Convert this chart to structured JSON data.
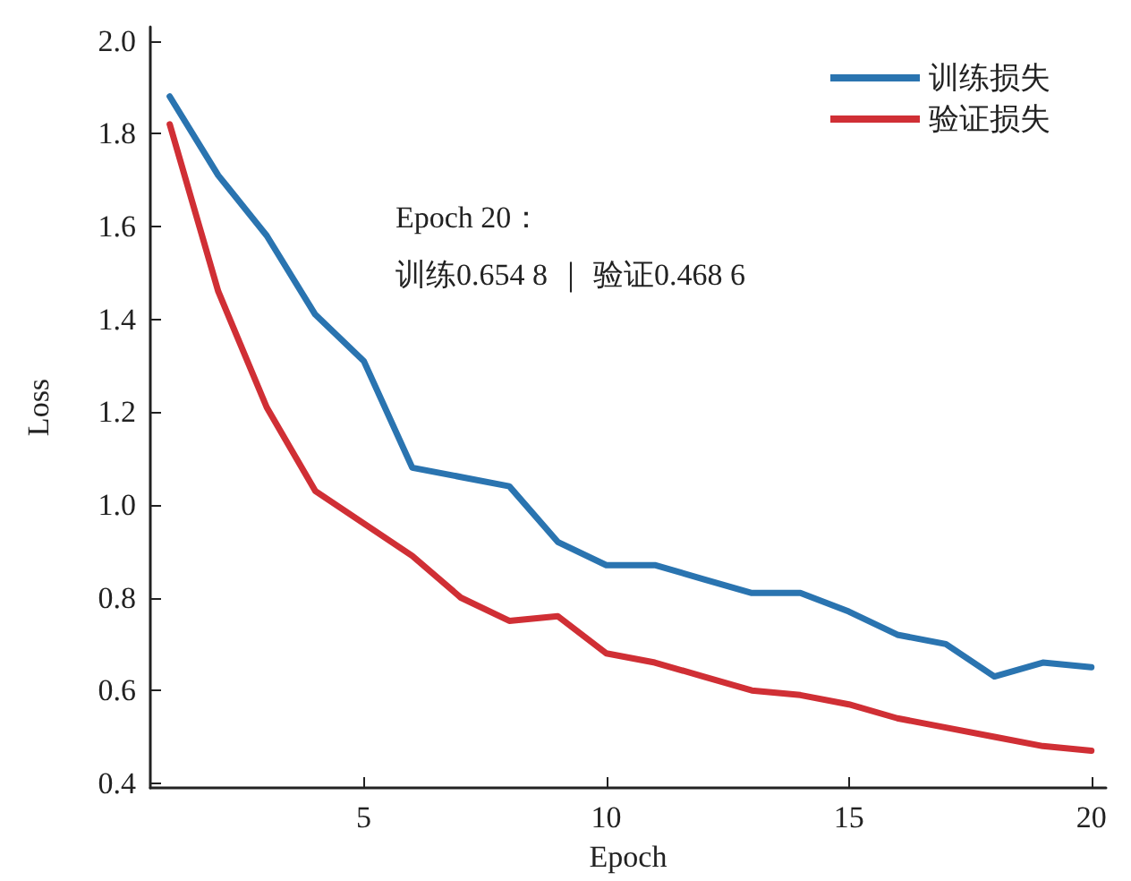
{
  "chart_data": {
    "type": "line",
    "xlabel": "Epoch",
    "ylabel": "Loss",
    "x": [
      1,
      2,
      3,
      4,
      5,
      6,
      7,
      8,
      9,
      10,
      11,
      12,
      13,
      14,
      15,
      16,
      17,
      18,
      19,
      20
    ],
    "series": [
      {
        "name": "训练损失",
        "color": "#2a74b0",
        "values": [
          1.88,
          1.71,
          1.58,
          1.41,
          1.31,
          1.08,
          1.06,
          1.04,
          0.92,
          0.87,
          0.87,
          0.84,
          0.81,
          0.81,
          0.77,
          0.72,
          0.7,
          0.63,
          0.66,
          0.65
        ]
      },
      {
        "name": "验证损失",
        "color": "#d02f35",
        "values": [
          1.82,
          1.46,
          1.21,
          1.03,
          0.96,
          0.89,
          0.8,
          0.75,
          0.76,
          0.68,
          0.66,
          0.63,
          0.6,
          0.59,
          0.57,
          0.54,
          0.52,
          0.5,
          0.48,
          0.47
        ]
      }
    ],
    "xlim": [
      0.6,
      20.3
    ],
    "xticks": [
      5,
      10,
      15,
      20
    ],
    "ylim": [
      0.39,
      2.03
    ],
    "yticks": [
      {
        "value": 0.4,
        "label": "0.4"
      },
      {
        "value": 0.6,
        "label": "0.6"
      },
      {
        "value": 0.8,
        "label": "0.8"
      },
      {
        "value": 1.0,
        "label": "1.0"
      },
      {
        "value": 1.2,
        "label": "1.2"
      },
      {
        "value": 1.4,
        "label": "1.4"
      },
      {
        "value": 1.6,
        "label": "1.6"
      },
      {
        "value": 1.8,
        "label": "1.8"
      },
      {
        "value": 2.0,
        "label": "2.0"
      }
    ],
    "annotations": [
      "Epoch 20：",
      "训练0.654 8 ｜ 验证0.468 6"
    ],
    "grid": false,
    "legend": "top right",
    "marker": "none",
    "line_style": "solid"
  }
}
